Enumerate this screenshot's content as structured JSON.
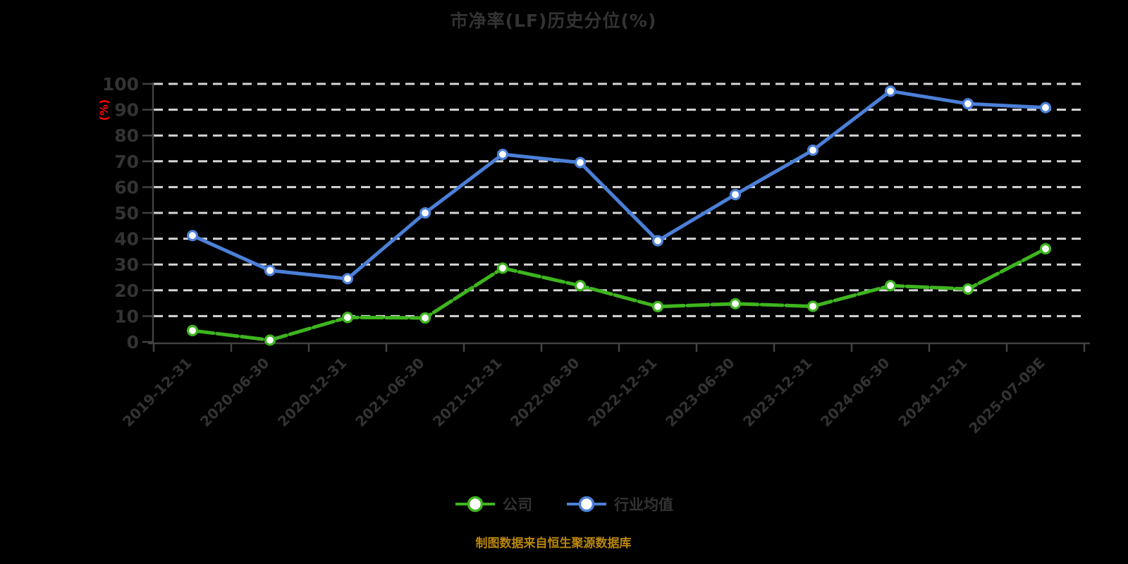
{
  "title": "市净率(LF)历史分位(%)",
  "source_note": "制图数据来自恒生聚源数据库",
  "colors": {
    "background": "#000000",
    "text": "#333333",
    "y_unit_label": "#ff0000",
    "source_note": "#b8860b",
    "grid": "#d6d6d6",
    "axis": "#424242",
    "company_line": "#3eb51f",
    "industry_line": "#4b80d8",
    "marker_fill": "#ffffff"
  },
  "chart_data": {
    "type": "line",
    "title": "市净率(LF)历史分位(%)",
    "xlabel": "",
    "ylabel": "(%)",
    "ylim": [
      0,
      100
    ],
    "ytick_step": 10,
    "grid": "horizontal-dashed-white",
    "legend_position": "bottom",
    "categories": [
      "2019-12-31",
      "2020-06-30",
      "2020-12-31",
      "2021-06-30",
      "2021-12-31",
      "2022-06-30",
      "2022-12-31",
      "2023-06-30",
      "2023-12-31",
      "2024-06-30",
      "2024-12-31",
      "2025-07-09E"
    ],
    "series": [
      {
        "name": "公司",
        "color": "#3eb51f",
        "line_style": "dashed",
        "marker": "circle-white-fill",
        "values": [
          4.4,
          0.7,
          9.5,
          9.3,
          28.6,
          21.8,
          13.7,
          14.8,
          13.8,
          21.8,
          20.5,
          36.1
        ]
      },
      {
        "name": "行业均值",
        "color": "#4b80d8",
        "line_style": "solid",
        "marker": "circle-white-fill",
        "values": [
          41.2,
          27.7,
          24.5,
          50.0,
          72.7,
          69.5,
          39.2,
          57.1,
          74.3,
          97.2,
          92.3,
          90.8
        ]
      }
    ]
  }
}
